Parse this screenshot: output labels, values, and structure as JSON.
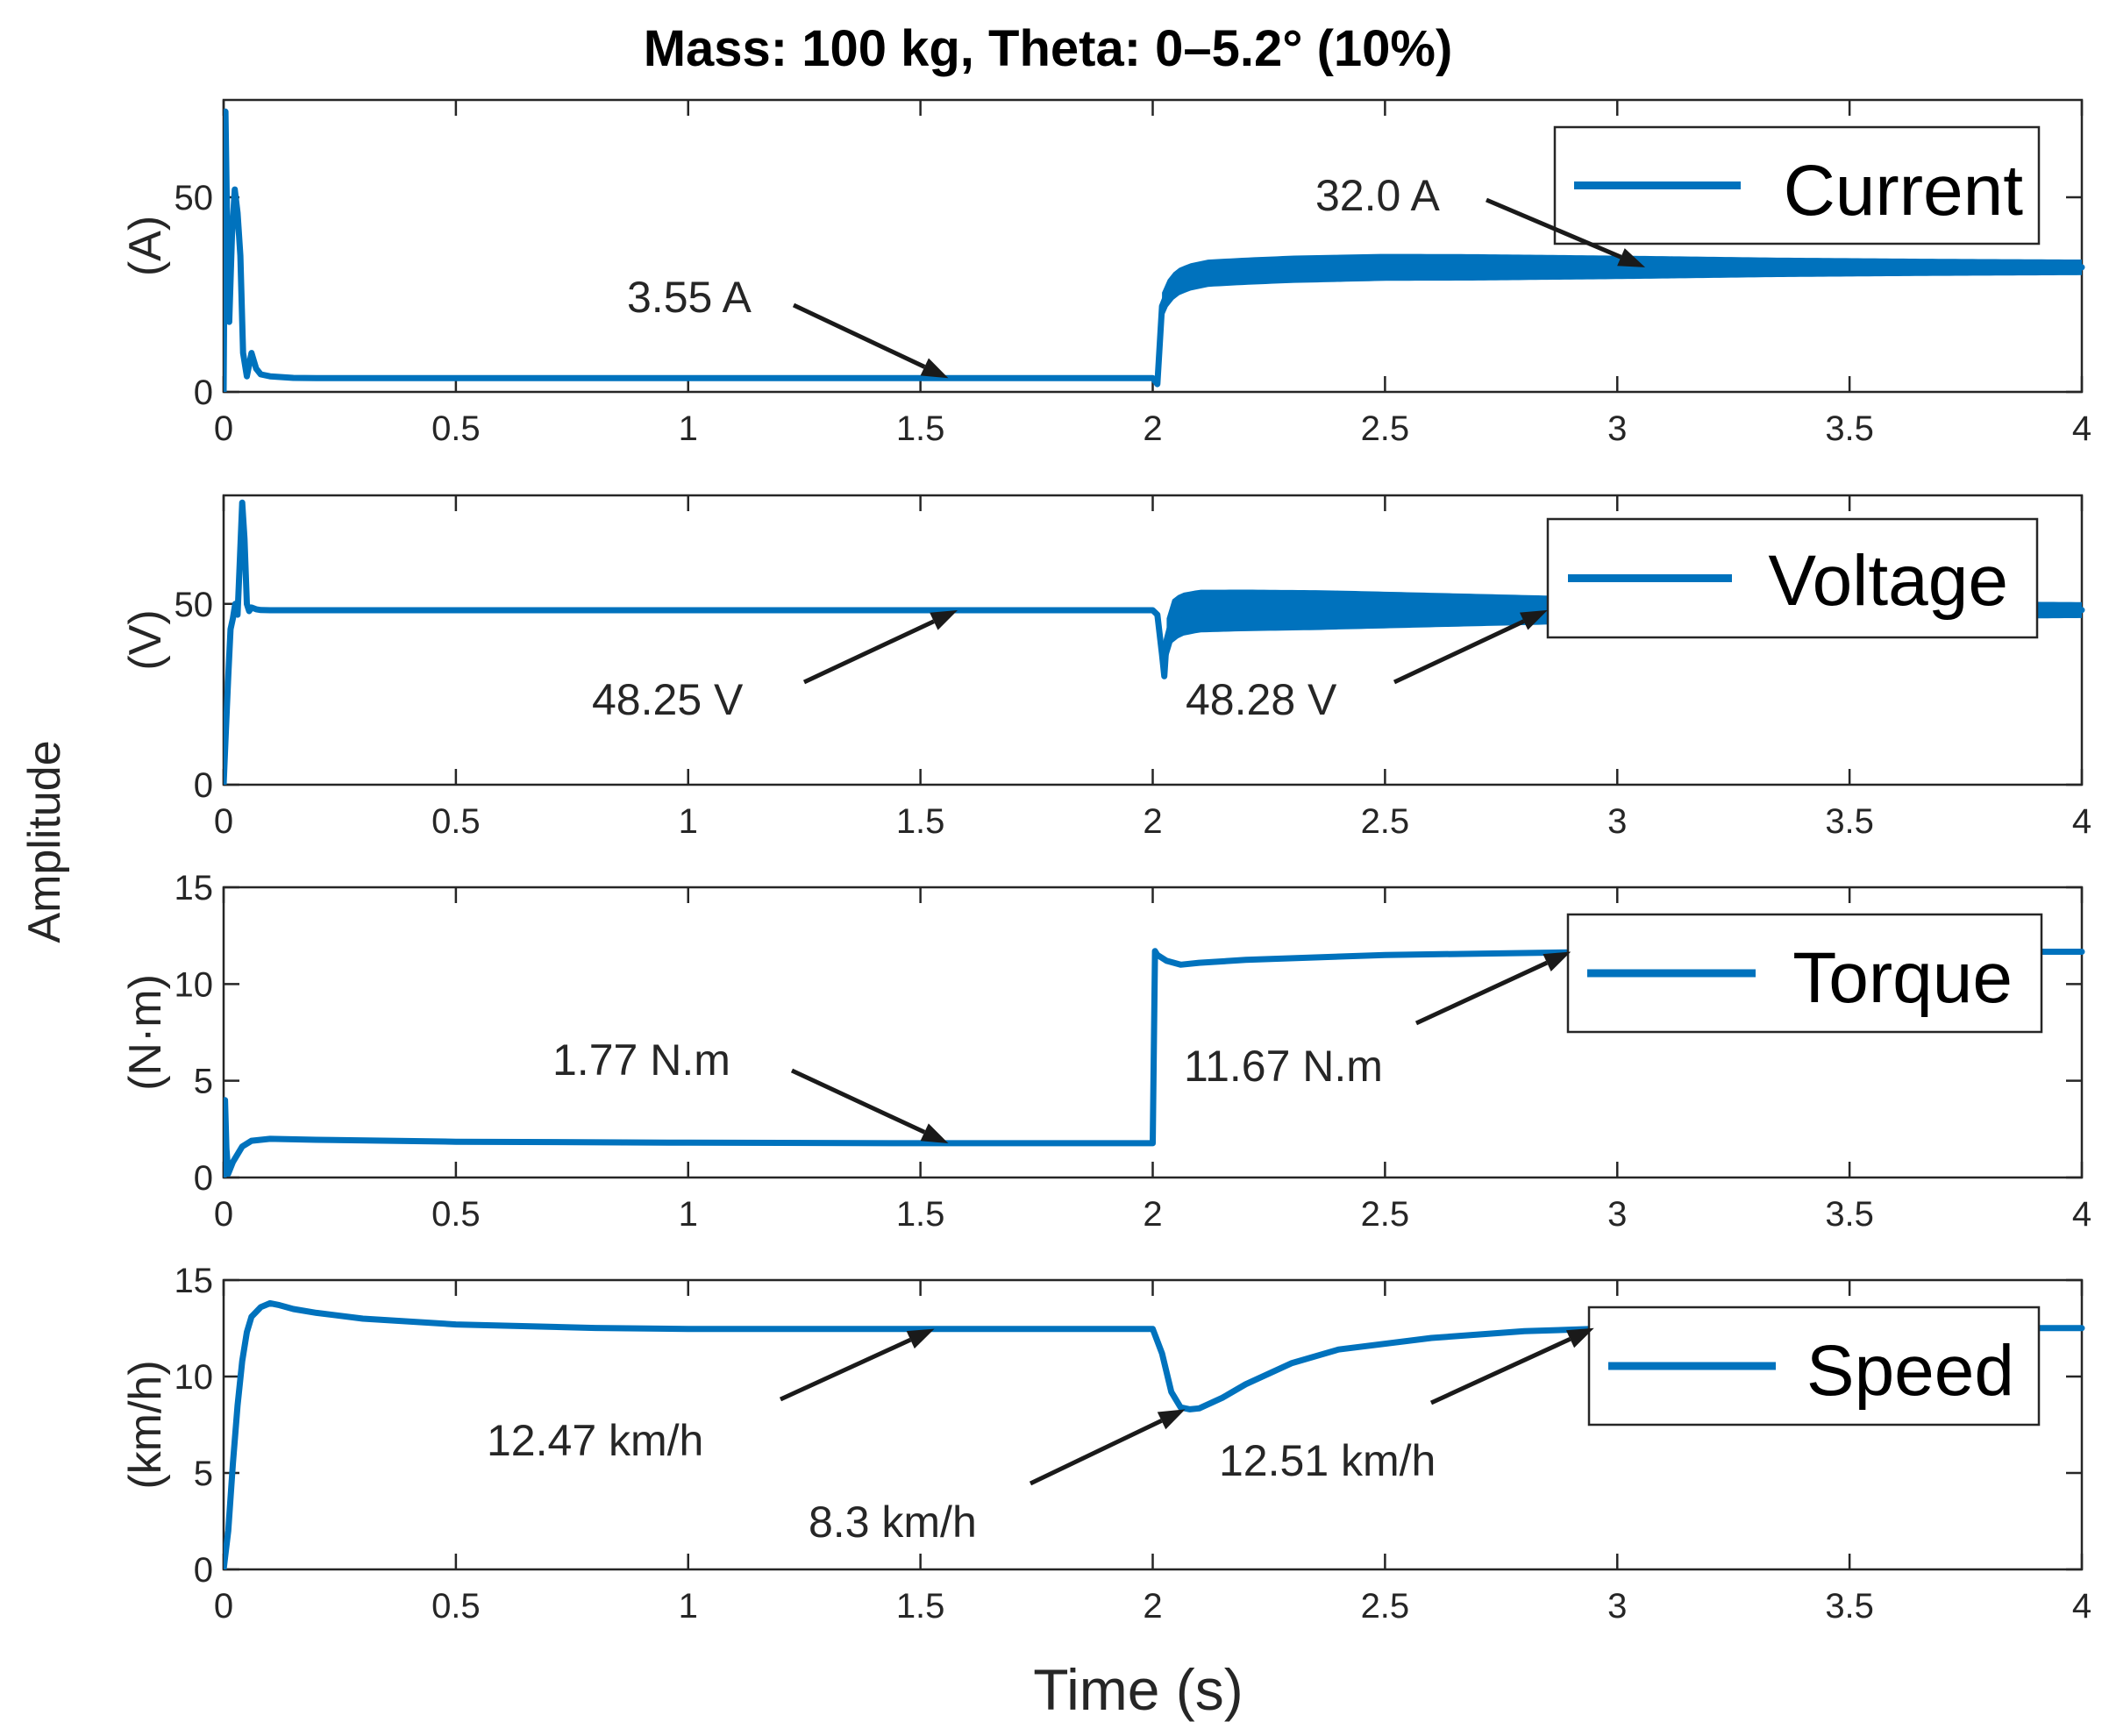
{
  "chart_data": {
    "type": "line",
    "title": "Mass: 100 kg, Theta: 0–5.2° (10%)",
    "shared_ylabel": "Amplitude",
    "xlabel": "Time (s)",
    "xlim": [
      0,
      4
    ],
    "xticks": [
      0,
      0.5,
      1,
      1.5,
      2,
      2.5,
      3,
      3.5,
      4
    ],
    "xtick_labels": [
      "0",
      "0.5",
      "1",
      "1.5",
      "2",
      "2.5",
      "3",
      "3.5",
      "4"
    ],
    "color": "#0072BD",
    "panels": [
      {
        "key": "current",
        "ylabel": "(A)",
        "ylim": [
          0,
          75
        ],
        "yticks": [
          0,
          50
        ],
        "ytick_labels": [
          "0",
          "50"
        ],
        "legend": "Current",
        "series": [
          {
            "name": "Current",
            "x": [
              0,
              0.004,
              0.008,
              0.012,
              0.018,
              0.024,
              0.03,
              0.036,
              0.042,
              0.05,
              0.06,
              0.07,
              0.08,
              0.1,
              0.15,
              0.2,
              0.5,
              1.0,
              1.5,
              1.99,
              2.0,
              2.01,
              2.02,
              2.03,
              2.05,
              2.08,
              2.12,
              2.2,
              2.3,
              2.5,
              3.0,
              3.5,
              4.0
            ],
            "y": [
              0,
              72,
              40,
              18,
              40,
              52,
              46,
              35,
              10,
              4,
              10,
              6,
              4.5,
              4,
              3.6,
              3.55,
              3.55,
              3.55,
              3.55,
              3.55,
              3.55,
              2,
              22,
              25,
              28,
              29.5,
              30.5,
              31,
              31.5,
              32,
              32,
              32,
              32
            ],
            "band_from_x": 2.02,
            "band_halfwidth": [
              3.5,
              3.5,
              3.4,
              3.0,
              2.5,
              2.2,
              2.0
            ]
          }
        ]
      },
      {
        "key": "voltage",
        "ylabel": "(V)",
        "ylim": [
          0,
          80
        ],
        "yticks": [
          0,
          50
        ],
        "ytick_labels": [
          "0",
          "50"
        ],
        "legend": "Voltage",
        "series": [
          {
            "name": "Voltage",
            "x": [
              0,
              0.005,
              0.01,
              0.015,
              0.02,
              0.025,
              0.03,
              0.035,
              0.04,
              0.045,
              0.05,
              0.055,
              0.06,
              0.07,
              0.08,
              0.1,
              0.2,
              0.5,
              1.0,
              1.5,
              1.99,
              2.0,
              2.01,
              2.02,
              2.025,
              2.03,
              2.04,
              2.06,
              2.1,
              2.2,
              2.4,
              2.6,
              3.0,
              3.5,
              4.0
            ],
            "y": [
              0,
              15,
              30,
              43,
              46,
              50,
              47,
              62,
              78,
              68,
              50,
              48,
              49,
              48.5,
              48.3,
              48.25,
              48.25,
              48.25,
              48.25,
              48.25,
              48.25,
              48.25,
              47,
              36,
              30,
              40,
              45,
              47,
              48,
              48.2,
              48.3,
              48.3,
              48.28,
              48.28,
              48.28
            ],
            "band_from_x": 2.03,
            "band_halfwidth": [
              6,
              5.5,
              4.5,
              3.5,
              3,
              2.5,
              2.2
            ]
          }
        ]
      },
      {
        "key": "torque",
        "ylabel": "(N·m)",
        "ylim": [
          0,
          15
        ],
        "yticks": [
          0,
          5,
          10,
          15
        ],
        "ytick_labels": [
          "0",
          "5",
          "10",
          "15"
        ],
        "legend": "Torque",
        "series": [
          {
            "name": "Torque",
            "x": [
              0,
              0.003,
              0.006,
              0.01,
              0.02,
              0.04,
              0.06,
              0.1,
              0.2,
              0.5,
              1.0,
              1.5,
              1.99,
              2.0,
              2.005,
              2.01,
              2.03,
              2.06,
              2.1,
              2.2,
              2.5,
              3.0,
              3.5,
              4.0
            ],
            "y": [
              0,
              4,
              1.5,
              0.2,
              0.8,
              1.6,
              1.9,
              2.0,
              1.95,
              1.85,
              1.8,
              1.77,
              1.77,
              1.77,
              11.7,
              11.5,
              11.2,
              11.0,
              11.1,
              11.25,
              11.5,
              11.67,
              11.67,
              11.67
            ]
          }
        ]
      },
      {
        "key": "speed",
        "ylabel": "(km/h)",
        "ylim": [
          0,
          15
        ],
        "yticks": [
          0,
          5,
          10,
          15
        ],
        "ytick_labels": [
          "0",
          "5",
          "10",
          "15"
        ],
        "legend": "Speed",
        "series": [
          {
            "name": "Speed",
            "x": [
              0,
              0.01,
              0.02,
              0.03,
              0.04,
              0.05,
              0.06,
              0.08,
              0.1,
              0.12,
              0.15,
              0.2,
              0.3,
              0.5,
              0.8,
              1.0,
              1.5,
              1.99,
              2.0,
              2.02,
              2.04,
              2.06,
              2.08,
              2.1,
              2.15,
              2.2,
              2.3,
              2.4,
              2.6,
              2.8,
              3.0,
              3.5,
              4.0
            ],
            "y": [
              0,
              2,
              5.5,
              8.5,
              10.8,
              12.3,
              13.1,
              13.6,
              13.8,
              13.7,
              13.5,
              13.3,
              13.0,
              12.7,
              12.52,
              12.47,
              12.47,
              12.47,
              12.47,
              11.2,
              9.2,
              8.4,
              8.3,
              8.35,
              8.9,
              9.6,
              10.7,
              11.4,
              12.0,
              12.35,
              12.51,
              12.51,
              12.51
            ]
          }
        ]
      }
    ],
    "annotations": [
      {
        "panel": "current",
        "text": "3.55 A",
        "point": [
          1.56,
          3.55
        ]
      },
      {
        "panel": "current",
        "text": "32.0 A",
        "point": [
          3.06,
          32.0
        ]
      },
      {
        "panel": "voltage",
        "text": "48.25 V",
        "point": [
          1.58,
          48.25
        ]
      },
      {
        "panel": "voltage",
        "text": "48.28 V",
        "point": [
          2.85,
          48.28
        ]
      },
      {
        "panel": "torque",
        "text": "1.77 N.m",
        "point": [
          1.56,
          1.77
        ]
      },
      {
        "panel": "torque",
        "text": "11.67 N.m",
        "point": [
          2.9,
          11.67
        ]
      },
      {
        "panel": "speed",
        "text": "12.47 km/h",
        "point": [
          1.53,
          12.47
        ]
      },
      {
        "panel": "speed",
        "text": "8.3 km/h",
        "point": [
          2.07,
          8.3
        ]
      },
      {
        "panel": "speed",
        "text": "12.51 km/h",
        "point": [
          2.95,
          12.51
        ]
      }
    ]
  }
}
